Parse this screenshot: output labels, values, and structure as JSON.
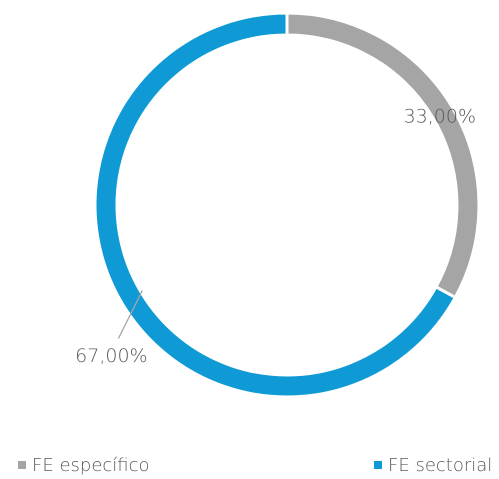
{
  "chart_data": {
    "type": "donut",
    "categories": [
      "FE específico",
      "FE sectorial"
    ],
    "values": [
      33,
      67
    ],
    "value_labels": [
      "33,00%",
      "67,00%"
    ],
    "colors": [
      "#a5a5a5",
      "#0f9ad6"
    ],
    "legend": "bottom"
  }
}
